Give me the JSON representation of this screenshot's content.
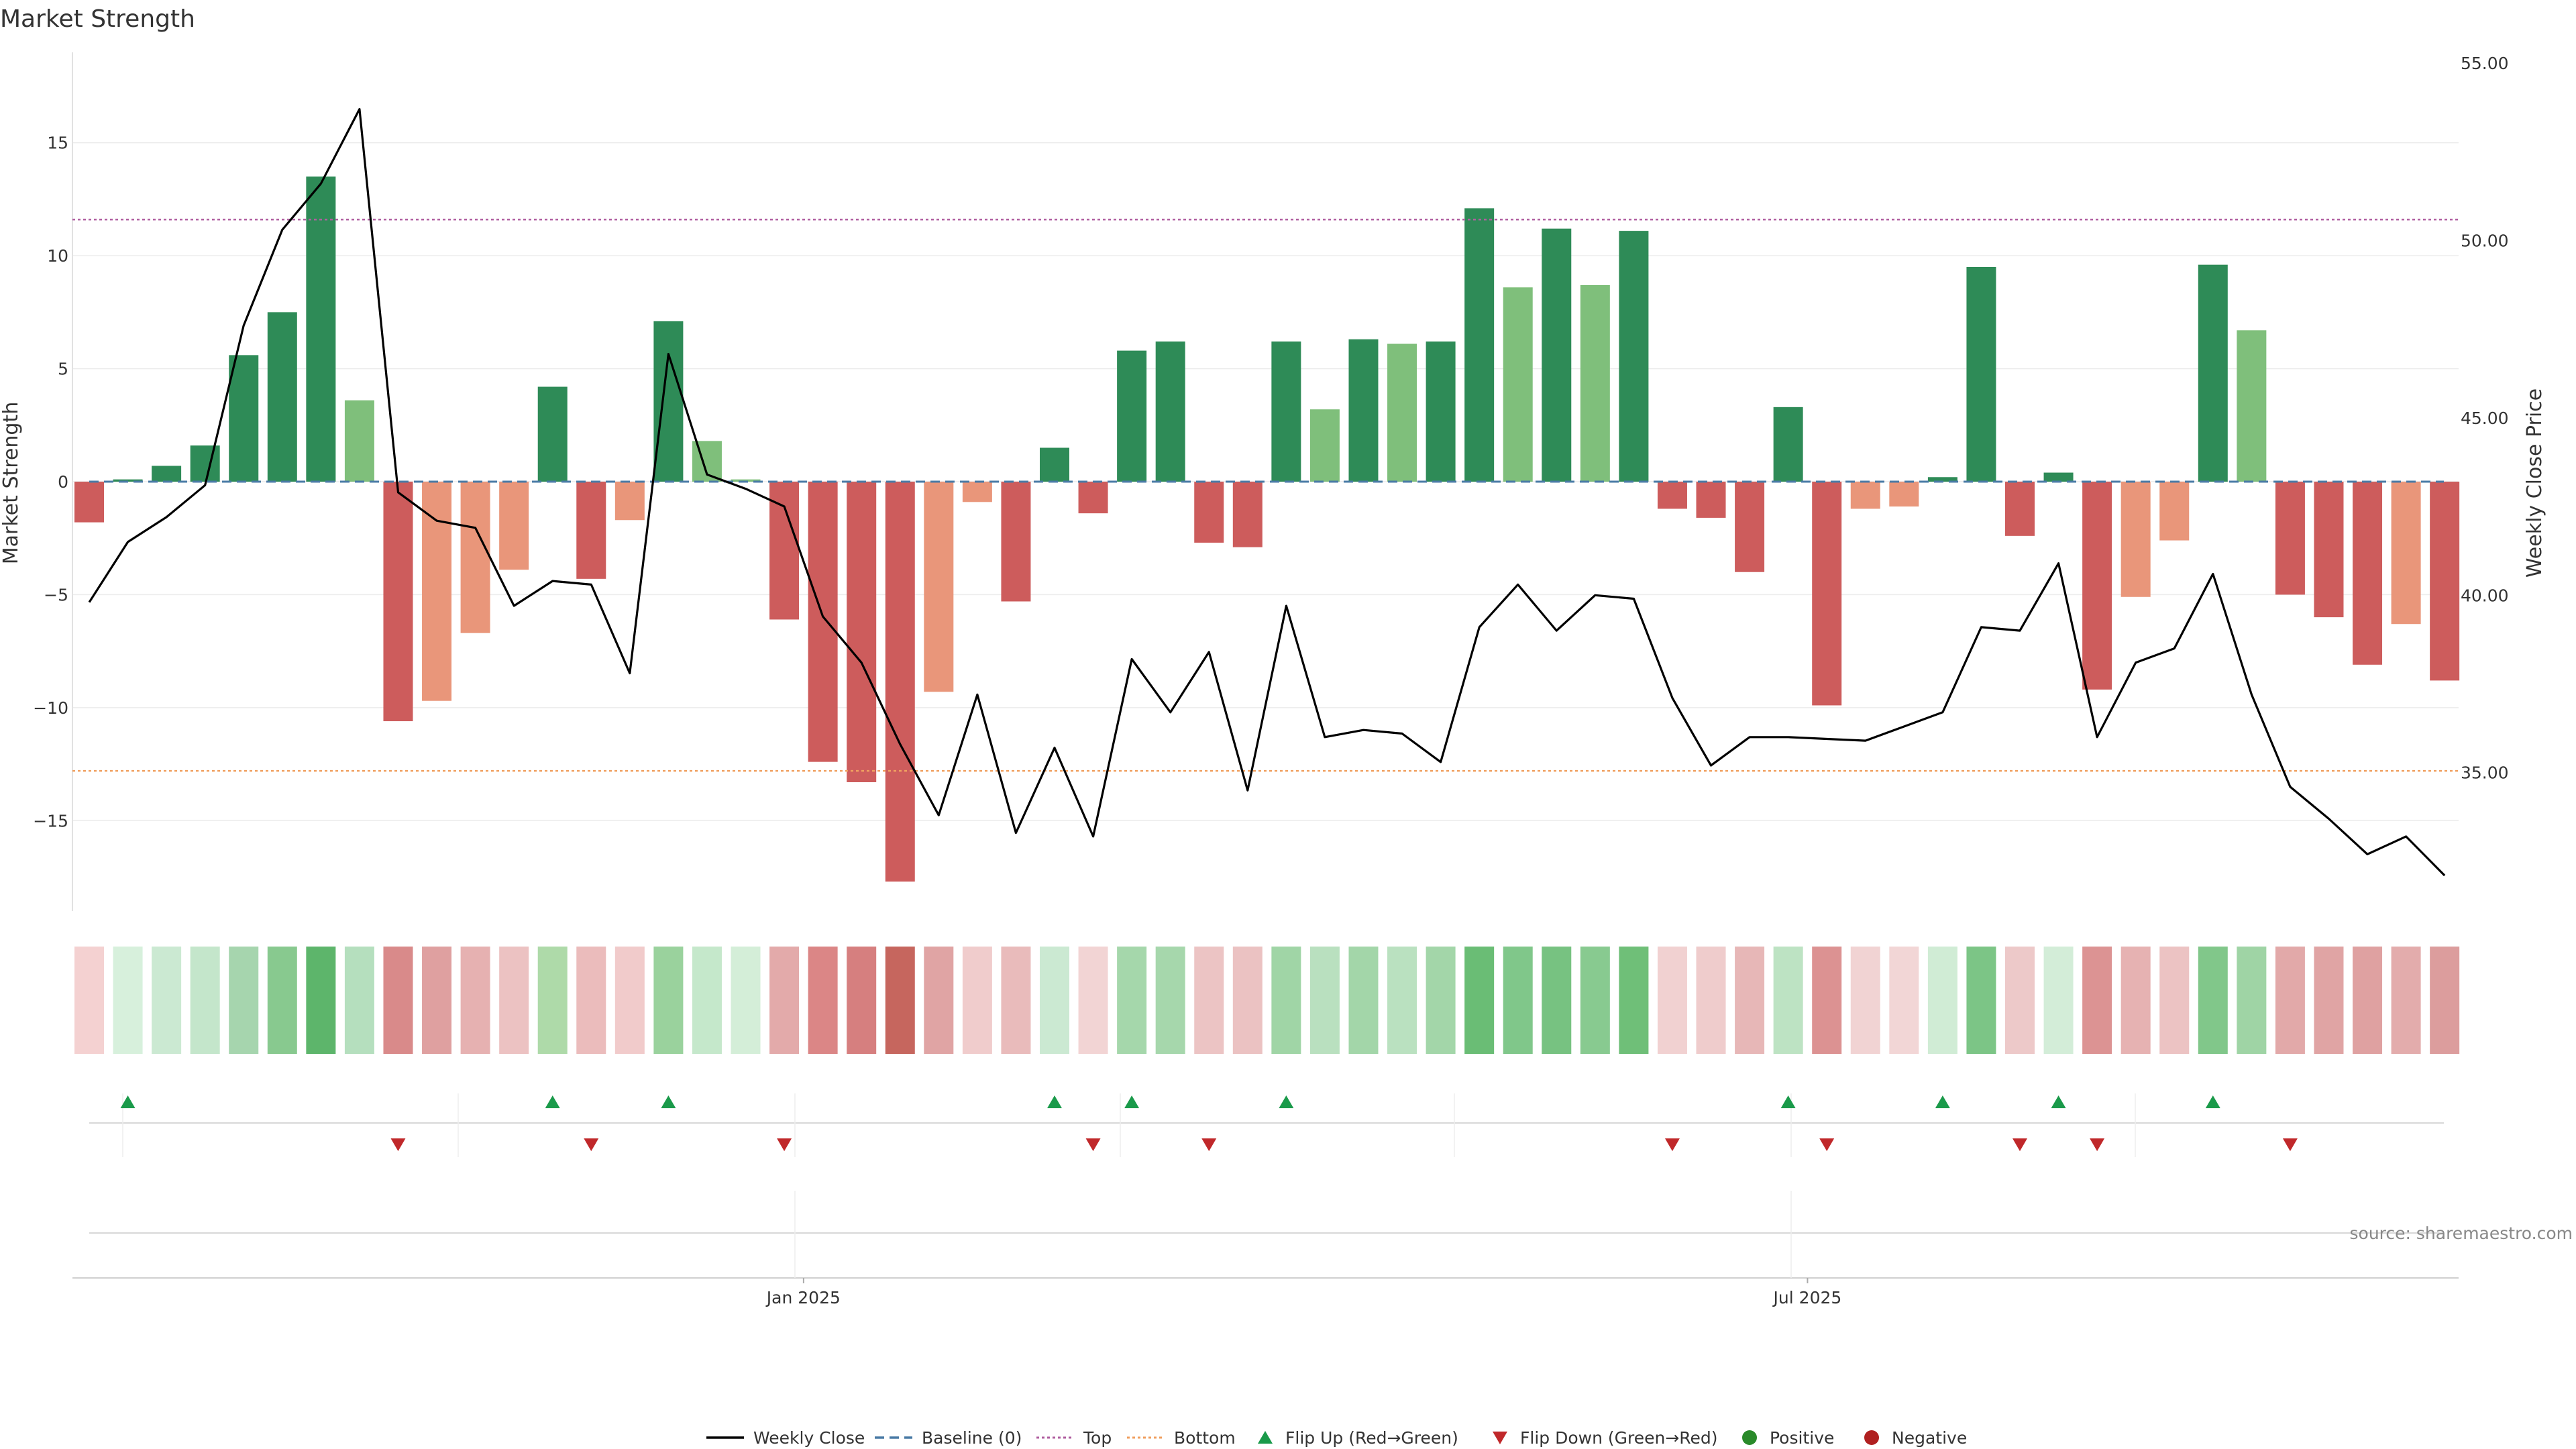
{
  "chart_data": {
    "type": "bar",
    "title": "Market Strength",
    "ylabel_left": "Market Strength",
    "ylabel_right": "Weekly Close Price",
    "ylim_left": [
      -19.0,
      19.0
    ],
    "ylim_right": [
      31.1,
      55.3
    ],
    "left_ticks": [
      {
        "value": 15,
        "label": "15"
      },
      {
        "value": 10,
        "label": "10"
      },
      {
        "value": 5,
        "label": "5"
      },
      {
        "value": 0,
        "label": "0"
      },
      {
        "value": -5,
        "label": "−5"
      },
      {
        "value": -10,
        "label": "−10"
      },
      {
        "value": -15,
        "label": "−15"
      }
    ],
    "right_ticks": [
      {
        "value": 55,
        "label": "55.00"
      },
      {
        "value": 50,
        "label": "50.00"
      },
      {
        "value": 45,
        "label": "45.00"
      },
      {
        "value": 40,
        "label": "40.00"
      },
      {
        "value": 35,
        "label": "35.00"
      }
    ],
    "x_ticks": [
      {
        "index": 18.5,
        "label": "Jan 2025"
      },
      {
        "index": 44.5,
        "label": "Jul 2025"
      }
    ],
    "reference_lines": {
      "baseline": 0,
      "top": 11.6,
      "bottom": -12.8
    },
    "strength": [
      -1.8,
      0.1,
      0.7,
      1.6,
      5.6,
      7.5,
      13.5,
      3.6,
      -10.6,
      -9.7,
      -6.7,
      -3.9,
      4.2,
      -4.3,
      -1.7,
      7.1,
      1.8,
      0.1,
      -6.1,
      -12.4,
      -13.3,
      -17.7,
      -9.3,
      -0.9,
      -5.3,
      1.5,
      -1.4,
      5.8,
      6.2,
      -2.7,
      -2.9,
      6.2,
      3.2,
      6.3,
      6.1,
      6.2,
      12.1,
      8.6,
      11.2,
      8.7,
      11.1,
      -1.2,
      -1.6,
      -4.0,
      3.3,
      -9.9,
      -1.2,
      -1.1,
      0.2,
      9.5,
      -2.4,
      0.4,
      -9.2,
      -5.1,
      -2.6,
      9.6,
      6.7,
      -5.0,
      -6.0,
      -8.1,
      -6.3,
      -8.8
    ],
    "bar_colors": [
      "#cd5c5c",
      "#2e8b57",
      "#2e8b57",
      "#2e8b57",
      "#2e8b57",
      "#2e8b57",
      "#2e8b57",
      "#7fbf7b",
      "#cd5c5c",
      "#e9967a",
      "#e9967a",
      "#e9967a",
      "#2e8b57",
      "#cd5c5c",
      "#e9967a",
      "#2e8b57",
      "#7fbf7b",
      "#7fbf7b",
      "#cd5c5c",
      "#cd5c5c",
      "#cd5c5c",
      "#cd5c5c",
      "#e9967a",
      "#e9967a",
      "#cd5c5c",
      "#2e8b57",
      "#cd5c5c",
      "#2e8b57",
      "#2e8b57",
      "#cd5c5c",
      "#cd5c5c",
      "#2e8b57",
      "#7fbf7b",
      "#2e8b57",
      "#7fbf7b",
      "#2e8b57",
      "#2e8b57",
      "#7fbf7b",
      "#2e8b57",
      "#7fbf7b",
      "#2e8b57",
      "#cd5c5c",
      "#cd5c5c",
      "#cd5c5c",
      "#2e8b57",
      "#cd5c5c",
      "#e9967a",
      "#e9967a",
      "#2e8b57",
      "#2e8b57",
      "#cd5c5c",
      "#2e8b57",
      "#cd5c5c",
      "#e9967a",
      "#e9967a",
      "#2e8b57",
      "#7fbf7b",
      "#cd5c5c",
      "#cd5c5c",
      "#cd5c5c",
      "#e9967a",
      "#cd5c5c"
    ],
    "weekly_close": [
      39.8,
      41.5,
      42.2,
      43.1,
      47.6,
      50.3,
      51.6,
      53.7,
      42.9,
      42.1,
      41.9,
      39.7,
      40.4,
      40.3,
      37.8,
      46.8,
      43.4,
      43.0,
      42.5,
      39.4,
      38.1,
      35.8,
      33.8,
      37.2,
      33.3,
      35.7,
      33.2,
      38.2,
      36.7,
      38.4,
      34.5,
      39.7,
      36.0,
      36.2,
      36.1,
      35.3,
      39.1,
      40.3,
      39.0,
      40.0,
      39.9,
      37.1,
      35.2,
      36.0,
      36.0,
      35.95,
      35.9,
      36.3,
      36.7,
      39.1,
      39.0,
      40.9,
      36.0,
      38.1,
      38.5,
      40.6,
      37.2,
      34.6,
      33.7,
      32.7,
      33.2,
      32.1
    ],
    "heat_colors": [
      "#f4d1d1",
      "#d7f0dc",
      "#cbe9d2",
      "#c4e6cb",
      "#a6d5ae",
      "#88c98f",
      "#5db56b",
      "#b5dfbe",
      "#d98a8a",
      "#dfa0a0",
      "#e6b1b1",
      "#ecc2c2",
      "#aedaa9",
      "#ebbcbc",
      "#f1cbcb",
      "#9ad29d",
      "#c5e8cb",
      "#d4eed8",
      "#e3aaaa",
      "#db8686",
      "#d67f7f",
      "#c6665e",
      "#e0a4a4",
      "#f0cccc",
      "#e9bbbb",
      "#cbe9d2",
      "#f2d4d4",
      "#a5d7ab",
      "#a6d7ac",
      "#ecc4c4",
      "#ebc2c2",
      "#a0d5a6",
      "#b9e0bf",
      "#a3d6a9",
      "#bae1c0",
      "#a3d6a9",
      "#6abd75",
      "#80c78a",
      "#77c281",
      "#88ca90",
      "#6fbf78",
      "#f1d1d1",
      "#efcccc",
      "#e7b7b7",
      "#bde3c3",
      "#dc9292",
      "#f1d3d3",
      "#f2d6d6",
      "#d0ecd5",
      "#7cc586",
      "#edc9c9",
      "#d3edd8",
      "#dc9393",
      "#e6b2b2",
      "#ecc3c3",
      "#81c78a",
      "#9fd4a5",
      "#e2a9a9",
      "#e0a4a4",
      "#dfa1a1",
      "#e3acac",
      "#dc9d9d"
    ],
    "flip_up_indices": [
      1,
      12,
      15,
      25,
      27,
      31,
      44,
      48,
      51,
      55
    ],
    "flip_down_indices": [
      8,
      13,
      18,
      26,
      29,
      41,
      45,
      50,
      52,
      57
    ],
    "legend": [
      {
        "label": "Weekly Close",
        "symbol": "line",
        "color": "#000000"
      },
      {
        "label": "Baseline (0)",
        "symbol": "dashed",
        "color": "#4a7ba6"
      },
      {
        "label": "Top",
        "symbol": "dotted",
        "color": "#b05fa0"
      },
      {
        "label": "Bottom",
        "symbol": "dotted",
        "color": "#f0a060"
      },
      {
        "label": "Flip Up (Red→Green)",
        "symbol": "triangle-up",
        "color": "#1a9a4a"
      },
      {
        "label": "Flip Down (Green→Red)",
        "symbol": "triangle-down",
        "color": "#c0282a"
      },
      {
        "label": "Positive",
        "symbol": "circle",
        "color": "#2a8a2a"
      },
      {
        "label": "Negative",
        "symbol": "circle",
        "color": "#b02020"
      }
    ],
    "source": "source: sharemaestro.com"
  },
  "colors": {
    "top_line": "#b05fa0",
    "bottom_line": "#f0a060",
    "baseline": "#4a7ba6",
    "flip_up": "#1a9a4a",
    "flip_down": "#c0282a",
    "price_line": "#000000"
  }
}
